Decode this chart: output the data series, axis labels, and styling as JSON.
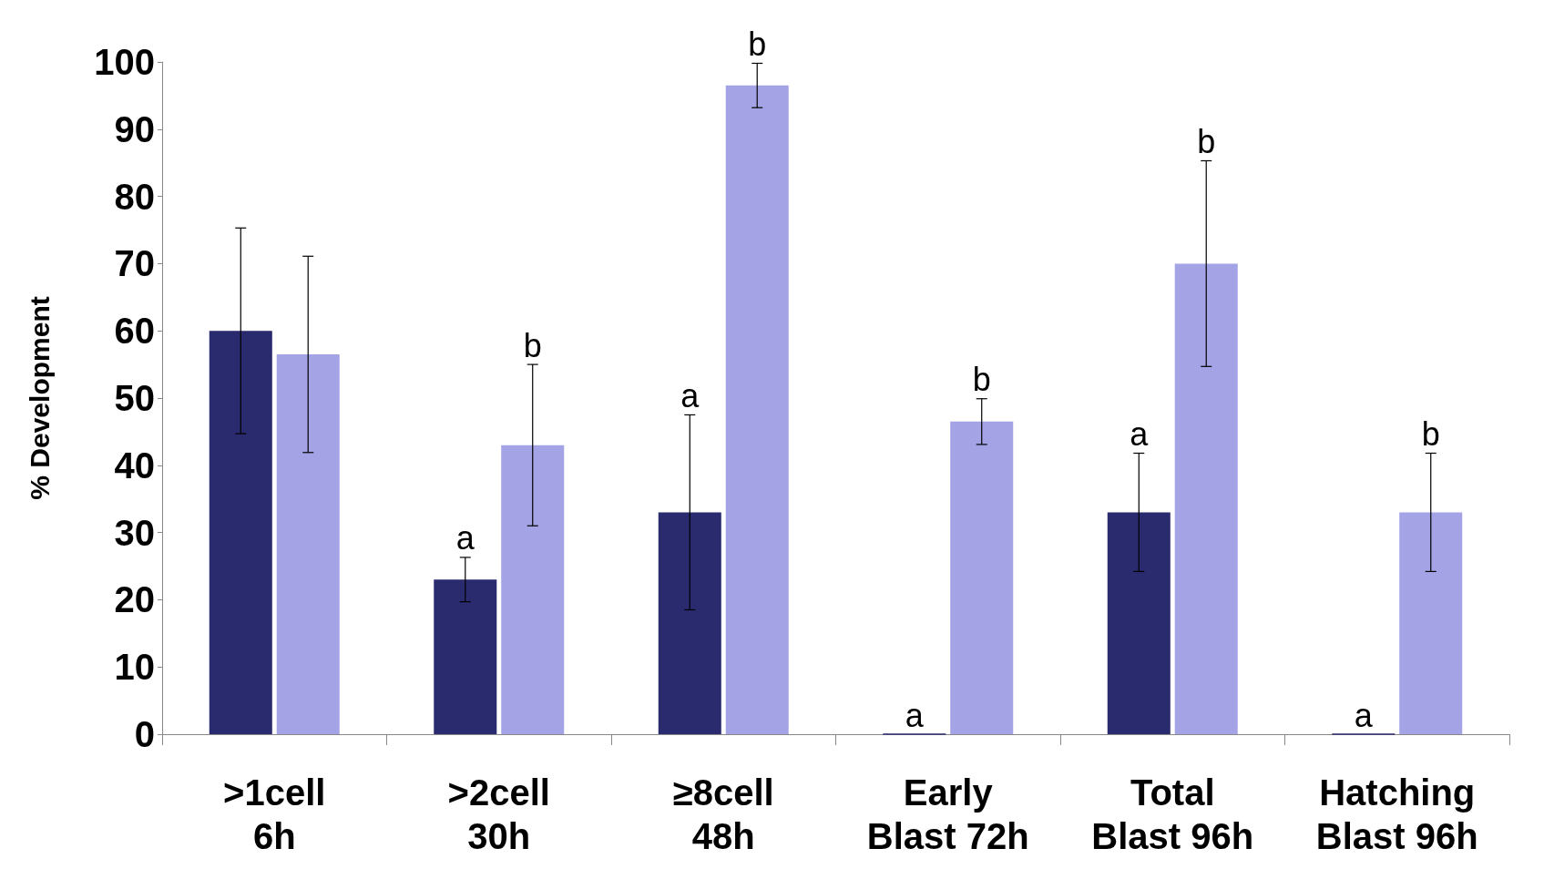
{
  "chart_data": {
    "type": "bar",
    "ylabel": "% Development",
    "categories": [
      ">1cell\n6h",
      ">2cell\n30h",
      "≥8cell\n48h",
      "Early\nBlast 72h",
      "Total\nBlast 96h",
      "Hatching\nBlast 96h"
    ],
    "series": [
      {
        "color": "#2a2a6e",
        "values": [
          60,
          23,
          33,
          0,
          33,
          0
        ],
        "errors": [
          15.3,
          3.3,
          14.5,
          null,
          8.8,
          null
        ],
        "value_labels": [
          null,
          "a",
          "a",
          "a",
          "a",
          "a"
        ]
      },
      {
        "color": "#a3a3e6",
        "values": [
          56.5,
          43,
          96.5,
          46.5,
          70,
          33
        ],
        "errors": [
          14.6,
          12,
          3.3,
          3.4,
          15.3,
          8.8
        ],
        "value_labels": [
          null,
          "b",
          "b",
          "b",
          "b",
          "b"
        ]
      }
    ],
    "ylim": [
      0,
      100
    ],
    "yticks": [
      0,
      10,
      20,
      30,
      40,
      50,
      60,
      70,
      80,
      90,
      100
    ],
    "grid": false
  }
}
